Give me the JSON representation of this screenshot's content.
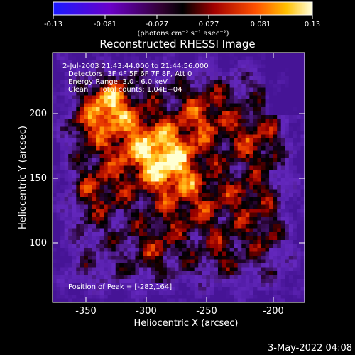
{
  "colorbar": {
    "tick_labels": [
      "-0.13",
      "-0.081",
      "-0.027",
      "0.027",
      "0.081",
      "0.13"
    ],
    "units_label": "(photons cm⁻² s⁻¹ asec⁻²)"
  },
  "plot": {
    "title": "Reconstructed RHESSI Image",
    "x_label": "Heliocentric X (arcsec)",
    "y_label": "Heliocentric Y (arcsec)",
    "x_ticks": [
      "-350",
      "-300",
      "-250",
      "-200"
    ],
    "y_ticks": [
      "200",
      "150",
      "100"
    ]
  },
  "overlay": {
    "time_range": "2-Jul-2003 21:43:44.000 to 21:44:56.000",
    "detectors": "Detectors: 3F 4F 5F 6F 7F 8F, Att 0",
    "energy": "Energy Range: 3.0 - 6.0 keV",
    "clean": "Clean     Total counts: 1.04E+04",
    "peak": "Position of Peak = [-282,164]"
  },
  "footer": {
    "date": "3-May-2022 04:08"
  }
}
